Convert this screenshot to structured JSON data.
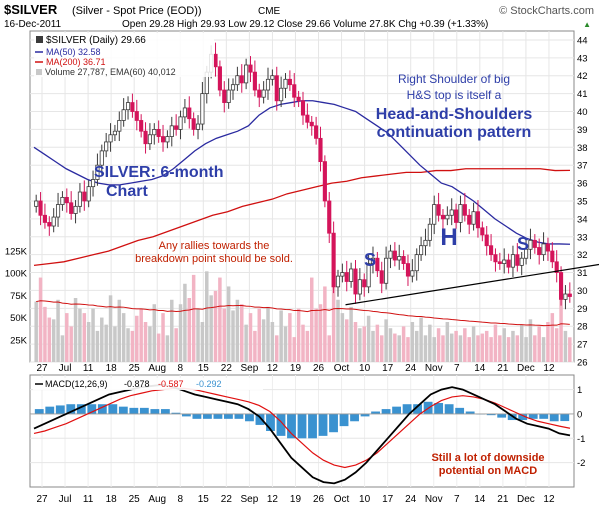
{
  "header": {
    "symbol": "$SILVER",
    "description": "(Silver - Spot Price (EOD))",
    "exchange": "CME",
    "watermark": "© StockCharts.com",
    "date": "16-Dec-2011",
    "ohlc_text": "Open 29.28  High 29.93  Low 29.12  Close 29.66  Volume 27.8K  Chg +0.39 (+1.33%)",
    "chg_marker": "▲"
  },
  "legend": {
    "main": "$SILVER (Daily) 29.66",
    "ma50": "MA(50) 32.58",
    "ma200": "MA(200) 36.71",
    "volume": "Volume 27,787, EMA(60) 40,012"
  },
  "macd_legend": {
    "label": "MACD(12,26,9)",
    "v1": "-0.878",
    "v2": "-0.587",
    "v3": "-0.292"
  },
  "annotations": {
    "title_line1": "SILVER: 6-month",
    "title_line2": "Chart",
    "shoulder_line1": "Right Shoulder of big",
    "shoulder_line2": "H&S top is itself a",
    "shoulder_line3": "Head-and-Shoulders",
    "shoulder_line4": "continuation pattern",
    "rallies_line1": "Any rallies towards the",
    "rallies_line2": "breakdown point should be sold.",
    "macd_line1": "Still a lot of downside",
    "macd_line2": "potential on MACD",
    "s_left": "S",
    "head": "H",
    "s_right": "S"
  },
  "colors": {
    "up": "#3a3a3a",
    "down": "#d4145a",
    "ma50": "#2a2aa0",
    "ma200": "#d01010",
    "vol_up": "#c8c8c8",
    "vol_down": "#f2b4c4",
    "macd_line": "#000000",
    "signal_line": "#e01010",
    "histogram": "#3a92d0",
    "annotation_blue": "#2e3ea8",
    "annotation_red": "#c02000"
  },
  "chart_data": [
    {
      "type": "candlestick",
      "title": "$SILVER (Daily)",
      "x_ticks": [
        "27",
        "Jul",
        "11",
        "18",
        "25",
        "Aug",
        "8",
        "15",
        "22",
        "Sep",
        "12",
        "19",
        "26",
        "Oct",
        "10",
        "17",
        "24",
        "Nov",
        "7",
        "14",
        "21",
        "Dec",
        "12"
      ],
      "ylim": [
        26,
        44.5
      ],
      "y_ticks": [
        26,
        27,
        28,
        29,
        30,
        31,
        32,
        33,
        34,
        35,
        36,
        37,
        38,
        39,
        40,
        41,
        42,
        43,
        44
      ],
      "grid": true,
      "close": [
        35.0,
        34.2,
        33.8,
        33.6,
        34.1,
        34.8,
        35.2,
        34.9,
        34.3,
        34.7,
        35.5,
        35.0,
        35.8,
        36.2,
        37.0,
        37.8,
        38.3,
        38.7,
        38.9,
        39.5,
        40.1,
        40.5,
        40.0,
        39.5,
        38.9,
        38.2,
        38.7,
        39.0,
        38.6,
        38.3,
        38.6,
        39.2,
        39.0,
        39.7,
        40.2,
        39.6,
        39.0,
        39.3,
        41.0,
        42.2,
        43.2,
        42.5,
        41.2,
        40.5,
        41.2,
        41.5,
        42.0,
        41.6,
        42.6,
        42.2,
        41.2,
        40.8,
        41.2,
        41.8,
        42.0,
        40.6,
        41.3,
        41.8,
        41.5,
        40.8,
        40.6,
        39.8,
        39.4,
        39.2,
        38.5,
        37.2,
        35.0,
        33.2,
        30.2,
        30.8,
        31.0,
        30.5,
        31.2,
        29.8,
        30.6,
        30.2,
        31.5,
        31.8,
        31.1,
        30.4,
        31.8,
        32.2,
        31.7,
        31.9,
        31.5,
        30.8,
        31.1,
        32.0,
        32.5,
        32.8,
        33.7,
        34.8,
        34.2,
        34.0,
        34.2,
        34.5,
        33.8,
        34.8,
        34.2,
        33.7,
        34.4,
        33.5,
        33.1,
        32.5,
        32.0,
        31.6,
        31.5,
        31.7,
        31.3,
        32.0,
        31.4,
        31.8,
        32.3,
        32.8,
        32.4,
        32.0,
        32.6,
        32.2,
        31.6,
        31.0,
        29.5,
        29.8,
        29.66
      ],
      "ma50": [
        38.0,
        37.6,
        37.2,
        36.8,
        36.5,
        36.2,
        36.0,
        35.9,
        35.9,
        36.0,
        36.1,
        36.2,
        36.4,
        36.8,
        37.3,
        37.8,
        38.2,
        38.5,
        38.7,
        38.9,
        39.2,
        39.8,
        40.2,
        40.4,
        40.5,
        40.6,
        40.6,
        40.5,
        40.4,
        40.2,
        40.0,
        39.6,
        39.2,
        38.8,
        38.2,
        37.6,
        37.0,
        36.5,
        36.0,
        35.8,
        35.4,
        35.0,
        34.5,
        34.0,
        33.6,
        33.2,
        32.9,
        32.7,
        32.6,
        32.6,
        32.58
      ],
      "ma200": [
        31.4,
        31.5,
        31.6,
        31.8,
        32.0,
        32.2,
        32.5,
        32.8,
        33.0,
        33.3,
        33.6,
        33.9,
        34.2,
        34.4,
        34.7,
        34.9,
        35.1,
        35.4,
        35.6,
        35.8,
        36.0,
        36.1,
        36.3,
        36.4,
        36.5,
        36.6,
        36.6,
        36.7,
        36.7,
        36.8,
        36.8,
        36.8,
        36.8,
        36.8,
        36.8,
        36.7,
        36.71
      ],
      "neckline": [
        [
          0.58,
          29.2
        ],
        [
          1.0,
          31.4
        ]
      ],
      "labels": [
        "S",
        "H",
        "S"
      ]
    },
    {
      "type": "bar",
      "title": "Volume",
      "ylim": [
        0,
        135000
      ],
      "y_ticks": [
        25000,
        50000,
        75000,
        100000,
        125000
      ],
      "y_tick_labels": [
        "25K",
        "50K",
        "75K",
        "100K",
        "125K"
      ],
      "values": [
        68000,
        95000,
        62000,
        50000,
        48000,
        70000,
        30000,
        55000,
        40000,
        72000,
        60000,
        55000,
        45000,
        60000,
        35000,
        50000,
        42000,
        75000,
        40000,
        70000,
        55000,
        38000,
        35000,
        52000,
        60000,
        45000,
        40000,
        65000,
        32000,
        55000,
        30000,
        70000,
        38000,
        65000,
        88000,
        72000,
        98000,
        60000,
        45000,
        102000,
        75000,
        80000,
        95000,
        60000,
        85000,
        58000,
        70000,
        65000,
        42000,
        55000,
        35000,
        60000,
        48000,
        62000,
        45000,
        30000,
        58000,
        40000,
        55000,
        28000,
        60000,
        42000,
        35000,
        95000,
        60000,
        65000,
        85000,
        30000,
        110000,
        70000,
        55000,
        48000,
        62000,
        45000,
        38000,
        40000,
        52000,
        35000,
        42000,
        30000,
        48000,
        38000,
        32000,
        30000,
        40000,
        28000,
        45000,
        35000,
        50000,
        30000,
        42000,
        28000,
        38000,
        30000,
        45000,
        32000,
        35000,
        30000,
        38000,
        28000,
        40000,
        30000,
        32000,
        35000,
        28000,
        42000,
        30000,
        38000,
        28000,
        35000,
        30000,
        42000,
        28000,
        48000,
        30000,
        40000,
        28000,
        45000,
        55000,
        38000,
        90000,
        35000,
        27787
      ],
      "ema60": [
        40012
      ]
    },
    {
      "type": "line",
      "title": "MACD(12,26,9)",
      "series": [
        {
          "name": "MACD(12,26,9)",
          "values": [
            -0.6,
            -0.4,
            -0.2,
            0.0,
            0.2,
            0.4,
            0.6,
            0.8,
            0.9,
            1.0,
            1.1,
            1.15,
            1.2,
            1.1,
            0.95,
            0.8,
            0.7,
            0.6,
            0.5,
            0.4,
            0.2,
            -0.1,
            -0.6,
            -1.2,
            -1.8,
            -2.2,
            -2.6,
            -2.8,
            -2.85,
            -2.7,
            -2.4,
            -2.0,
            -1.5,
            -1.0,
            -0.5,
            0.0,
            0.4,
            0.8,
            1.0,
            1.1,
            1.0,
            0.8,
            0.6,
            0.4,
            0.1,
            -0.2,
            -0.4,
            -0.5,
            -0.6,
            -0.8,
            -0.878
          ]
        },
        {
          "name": "signal",
          "values": [
            -0.8,
            -0.7,
            -0.55,
            -0.4,
            -0.2,
            0.0,
            0.2,
            0.4,
            0.6,
            0.75,
            0.85,
            0.95,
            1.0,
            1.05,
            1.05,
            1.0,
            0.9,
            0.8,
            0.7,
            0.6,
            0.5,
            0.35,
            0.1,
            -0.3,
            -0.8,
            -1.2,
            -1.6,
            -1.9,
            -2.1,
            -2.2,
            -2.1,
            -1.9,
            -1.6,
            -1.2,
            -0.8,
            -0.4,
            0.0,
            0.3,
            0.55,
            0.7,
            0.75,
            0.7,
            0.6,
            0.45,
            0.25,
            0.05,
            -0.15,
            -0.3,
            -0.4,
            -0.5,
            -0.587
          ]
        },
        {
          "name": "histogram",
          "values": [
            0.2,
            0.3,
            0.35,
            0.4,
            0.4,
            0.4,
            0.4,
            0.4,
            0.3,
            0.25,
            0.25,
            0.2,
            0.2,
            0.05,
            -0.1,
            -0.2,
            -0.2,
            -0.2,
            -0.2,
            -0.2,
            -0.3,
            -0.45,
            -0.7,
            -0.9,
            -1.0,
            -1.0,
            -1.0,
            -0.9,
            -0.75,
            -0.5,
            -0.3,
            -0.1,
            0.1,
            0.2,
            0.3,
            0.4,
            0.4,
            0.5,
            0.45,
            0.4,
            0.25,
            0.1,
            0.0,
            -0.05,
            -0.15,
            -0.25,
            -0.25,
            -0.2,
            -0.2,
            -0.3,
            -0.292
          ]
        }
      ],
      "ylim": [
        -3,
        1.6
      ],
      "y_ticks": [
        -2,
        -1,
        0,
        1
      ],
      "x_ticks": [
        "27",
        "Jul",
        "11",
        "18",
        "25",
        "Aug",
        "8",
        "15",
        "22",
        "Sep",
        "12",
        "19",
        "26",
        "Oct",
        "10",
        "17",
        "24",
        "Nov",
        "7",
        "14",
        "21",
        "Dec",
        "12"
      ]
    }
  ]
}
